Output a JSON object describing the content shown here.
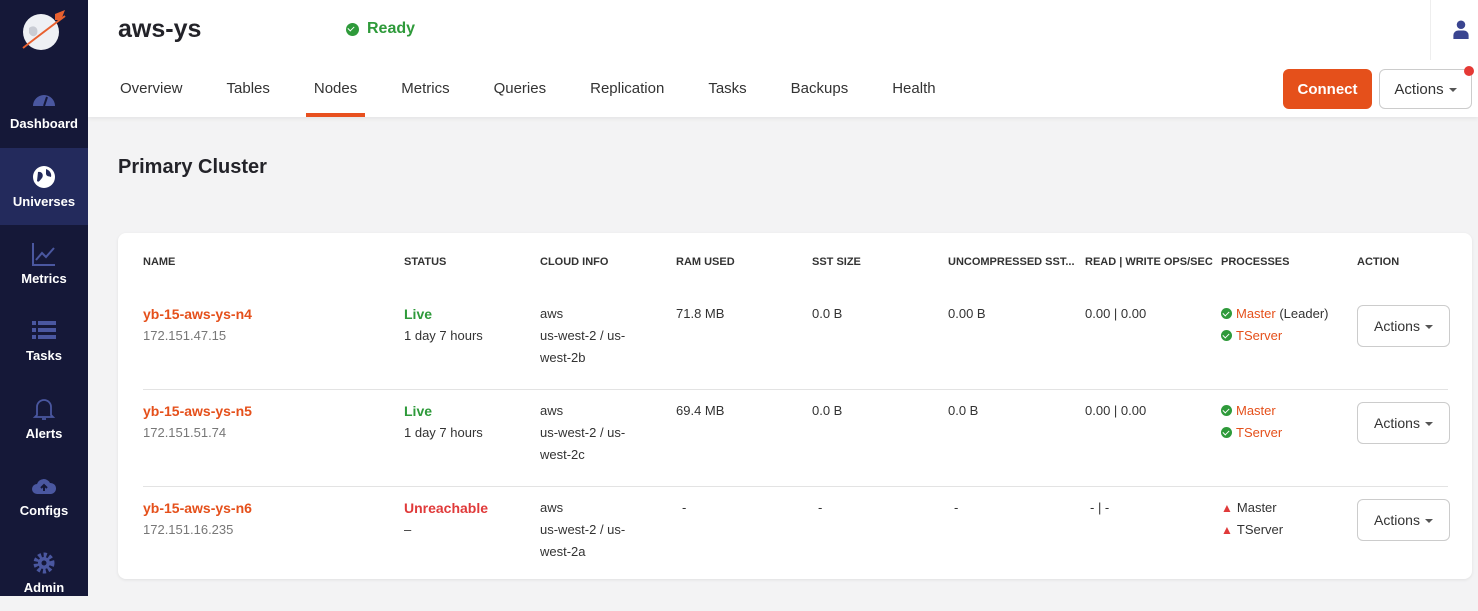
{
  "sidebar": {
    "items": [
      {
        "label": "Dashboard",
        "icon": "dashboard-icon"
      },
      {
        "label": "Universes",
        "icon": "globe-icon",
        "active": true
      },
      {
        "label": "Metrics",
        "icon": "chart-icon"
      },
      {
        "label": "Tasks",
        "icon": "list-icon"
      },
      {
        "label": "Alerts",
        "icon": "bell-icon"
      },
      {
        "label": "Configs",
        "icon": "cloud-upload-icon"
      },
      {
        "label": "Admin",
        "icon": "gear-icon"
      }
    ]
  },
  "header": {
    "title": "aws-ys",
    "status": "Ready",
    "tabs": [
      "Overview",
      "Tables",
      "Nodes",
      "Metrics",
      "Queries",
      "Replication",
      "Tasks",
      "Backups",
      "Health"
    ],
    "active_tab": "Nodes",
    "connect": "Connect",
    "actions": "Actions"
  },
  "section_title": "Primary Cluster",
  "table": {
    "headers": [
      "NAME",
      "STATUS",
      "CLOUD INFO",
      "RAM USED",
      "SST SIZE",
      "UNCOMPRESSED SST...",
      "READ | WRITE OPS/SEC",
      "PROCESSES",
      "ACTION"
    ],
    "rows": [
      {
        "name": "yb-15-aws-ys-n4",
        "ip": "172.151.47.15",
        "status": "Live",
        "uptime": "1 day 7 hours",
        "cloud1": "aws",
        "cloud2": "us-west-2 / us-",
        "cloud3": "west-2b",
        "ram": "71.8 MB",
        "sst": "0.0 B",
        "usst": "0.00 B",
        "ops": "0.00 | 0.00",
        "p1": "Master",
        "p1extra": " (Leader)",
        "p2": "TServer",
        "action": "Actions"
      },
      {
        "name": "yb-15-aws-ys-n5",
        "ip": "172.151.51.74",
        "status": "Live",
        "uptime": "1 day 7 hours",
        "cloud1": "aws",
        "cloud2": "us-west-2 / us-",
        "cloud3": "west-2c",
        "ram": "69.4 MB",
        "sst": "0.0 B",
        "usst": "0.0 B",
        "ops": "0.00 | 0.00",
        "p1": "Master",
        "p1extra": "",
        "p2": "TServer",
        "action": "Actions"
      },
      {
        "name": "yb-15-aws-ys-n6",
        "ip": "172.151.16.235",
        "status": "Unreachable",
        "uptime": "–",
        "cloud1": "aws",
        "cloud2": "us-west-2 / us-",
        "cloud3": "west-2a",
        "ram": "-",
        "sst": "-",
        "usst": "-",
        "ops": "- | -",
        "p1": "Master",
        "p1extra": "",
        "p2": "TServer",
        "action": "Actions"
      }
    ]
  },
  "colors": {
    "accent": "#e5501b",
    "sidebar": "#151838",
    "live": "#2e9a3a",
    "error": "#e03a3a"
  }
}
